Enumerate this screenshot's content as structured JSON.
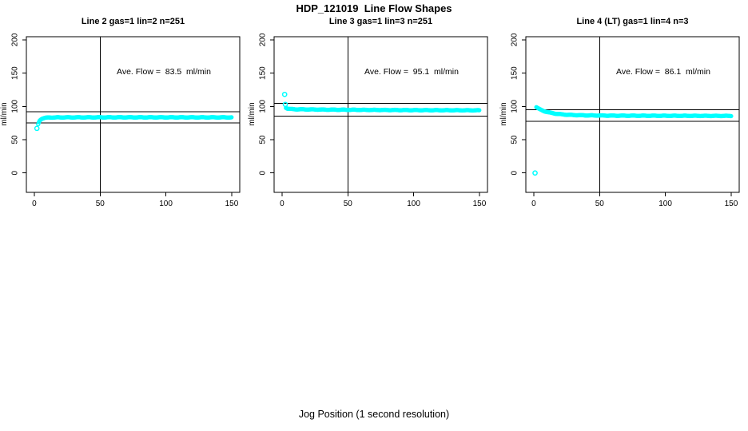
{
  "figure": {
    "title": "HDP_121019  Line Flow Shapes",
    "xlabel": "Jog Position (1 second resolution)",
    "background_color": "#ffffff",
    "point_color": "#00ffff",
    "line_color": "#000000"
  },
  "chart_data": [
    {
      "type": "scatter",
      "title": "Line 2 gas=1 lin=2 n=251",
      "line": "Line 2",
      "gas": 1,
      "lin": 2,
      "n": 251,
      "ylabel": "ml/min",
      "annotation": "Ave. Flow =  83.5  ml/min",
      "ave_flow": 83.5,
      "x_ticks": [
        0,
        50,
        100,
        150
      ],
      "y_ticks": [
        0,
        50,
        100,
        150,
        200
      ],
      "xlim": [
        0,
        150
      ],
      "ylim": [
        0,
        200
      ],
      "vline_x": 50,
      "ref_line_upper": 91.9,
      "ref_line_lower": 75.2,
      "outliers": [
        [
          2,
          67
        ]
      ],
      "band": [
        [
          3,
          73
        ],
        [
          3.5,
          76
        ],
        [
          4,
          78.5
        ],
        [
          5,
          80.5
        ],
        [
          6,
          81.8
        ],
        [
          8,
          82.8
        ],
        [
          11,
          83.3
        ],
        [
          20,
          83.5
        ],
        [
          60,
          83.6
        ],
        [
          150,
          83.5
        ]
      ]
    },
    {
      "type": "scatter",
      "title": "Line 3 gas=1 lin=3 n=251",
      "line": "Line 3",
      "gas": 1,
      "lin": 3,
      "n": 251,
      "ylabel": "ml/min",
      "annotation": "Ave. Flow =  95.1  ml/min",
      "ave_flow": 95.1,
      "x_ticks": [
        0,
        50,
        100,
        150
      ],
      "y_ticks": [
        0,
        50,
        100,
        150,
        200
      ],
      "xlim": [
        0,
        150
      ],
      "ylim": [
        0,
        200
      ],
      "vline_x": 50,
      "ref_line_upper": 104.6,
      "ref_line_lower": 85.6,
      "outliers": [
        [
          2,
          118
        ],
        [
          2.5,
          103
        ]
      ],
      "band": [
        [
          3,
          98
        ],
        [
          4,
          96.8
        ],
        [
          6,
          96.1
        ],
        [
          10,
          95.7
        ],
        [
          30,
          95.2
        ],
        [
          60,
          94.8
        ],
        [
          100,
          94.4
        ],
        [
          150,
          94.1
        ]
      ]
    },
    {
      "type": "scatter",
      "title": "Line 4 (LT) gas=1 lin=4 n=3",
      "line": "Line 4 (LT)",
      "gas": 1,
      "lin": 4,
      "n": 3,
      "ylabel": "ml/min",
      "annotation": "Ave. Flow =  86.1  ml/min",
      "ave_flow": 86.1,
      "x_ticks": [
        0,
        50,
        100,
        150
      ],
      "y_ticks": [
        0,
        50,
        100,
        150,
        200
      ],
      "xlim": [
        0,
        150
      ],
      "ylim": [
        0,
        200
      ],
      "vline_x": 50,
      "ref_line_upper": 94.7,
      "ref_line_lower": 77.5,
      "outliers": [
        [
          1,
          0
        ]
      ],
      "band": [
        [
          2,
          99
        ],
        [
          3,
          97.5
        ],
        [
          4,
          96.3
        ],
        [
          5,
          95.2
        ],
        [
          6,
          94.3
        ],
        [
          8,
          92.8
        ],
        [
          10,
          91.7
        ],
        [
          13,
          90.3
        ],
        [
          16,
          89.3
        ],
        [
          20,
          88.3
        ],
        [
          25,
          87.5
        ],
        [
          30,
          87
        ],
        [
          40,
          86.5
        ],
        [
          60,
          86.1
        ],
        [
          100,
          85.9
        ],
        [
          150,
          85.7
        ]
      ]
    }
  ]
}
